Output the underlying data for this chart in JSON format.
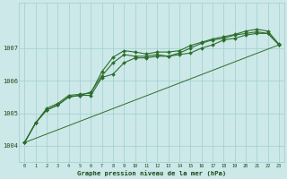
{
  "title": "Graphe pression niveau de la mer (hPa)",
  "bg_color": "#cce8e8",
  "grid_color": "#9fcfcf",
  "line_color": "#2d6e2d",
  "x_labels": [
    "0",
    "1",
    "2",
    "3",
    "4",
    "5",
    "6",
    "7",
    "8",
    "9",
    "10",
    "11",
    "12",
    "13",
    "14",
    "15",
    "16",
    "17",
    "18",
    "19",
    "20",
    "21",
    "22",
    "23"
  ],
  "ylim": [
    1003.5,
    1008.4
  ],
  "yticks": [
    1004,
    1005,
    1006,
    1007
  ],
  "series": {
    "line1": [
      1004.1,
      1004.7,
      1005.1,
      1005.25,
      1005.5,
      1005.55,
      1005.55,
      1006.1,
      1006.2,
      1006.55,
      1006.7,
      1006.7,
      1006.75,
      1006.75,
      1006.8,
      1006.85,
      1007.0,
      1007.1,
      1007.25,
      1007.3,
      1007.4,
      1007.45,
      1007.45,
      1007.1
    ],
    "line2": [
      1004.1,
      1004.7,
      1005.1,
      1005.25,
      1005.5,
      1005.55,
      1005.65,
      1006.15,
      1006.55,
      1006.8,
      1006.75,
      1006.75,
      1006.8,
      1006.75,
      1006.85,
      1007.0,
      1007.15,
      1007.25,
      1007.3,
      1007.4,
      1007.45,
      1007.5,
      1007.45,
      1007.1
    ],
    "line3": [
      1004.1,
      1004.7,
      1005.15,
      1005.3,
      1005.55,
      1005.58,
      1005.62,
      1006.28,
      1006.72,
      1006.92,
      1006.88,
      1006.82,
      1006.88,
      1006.88,
      1006.92,
      1007.08,
      1007.18,
      1007.28,
      1007.35,
      1007.42,
      1007.52,
      1007.58,
      1007.52,
      1007.12
    ],
    "line4_straight": [
      [
        0,
        23
      ],
      [
        1004.1,
        1007.1
      ]
    ]
  }
}
